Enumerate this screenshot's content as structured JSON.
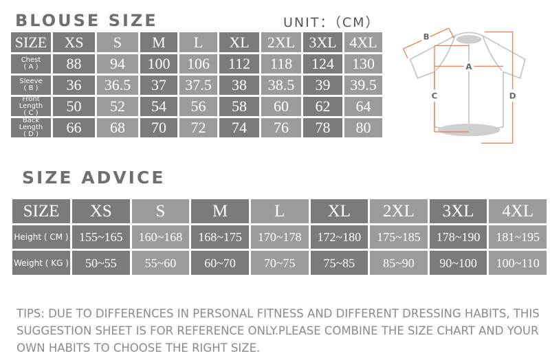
{
  "blouse": {
    "title": "BLOUSE SIZE",
    "unit": "UNIT：（CM）",
    "header": [
      "SIZE",
      "XS",
      "S",
      "M",
      "L",
      "XL",
      "2XL",
      "3XL",
      "4XL"
    ],
    "rows": [
      {
        "label": "Chest",
        "sub": "( A )",
        "values": [
          "88",
          "94",
          "100",
          "106",
          "112",
          "118",
          "124",
          "130"
        ]
      },
      {
        "label": "Sleeve",
        "sub": "( B )",
        "values": [
          "36",
          "36.5",
          "37",
          "37.5",
          "38",
          "38.5",
          "39",
          "39.5"
        ]
      },
      {
        "label": "Front Length",
        "sub": "( C )",
        "values": [
          "50",
          "52",
          "54",
          "56",
          "58",
          "60",
          "62",
          "64"
        ]
      },
      {
        "label": "Back Length",
        "sub": "( D )",
        "values": [
          "66",
          "68",
          "70",
          "72",
          "74",
          "76",
          "78",
          "80"
        ]
      }
    ]
  },
  "diagram": {
    "labels": [
      "A",
      "B",
      "C",
      "D"
    ],
    "accent": "#e8825c"
  },
  "advice": {
    "title": "SIZE ADVICE",
    "header": [
      "SIZE",
      "XS",
      "S",
      "M",
      "L",
      "XL",
      "2XL",
      "3XL",
      "4XL"
    ],
    "rows": [
      {
        "label": "Height ( CM )",
        "values": [
          "155~165",
          "160~168",
          "168~175",
          "170~178",
          "172~180",
          "175~185",
          "178~190",
          "181~195"
        ]
      },
      {
        "label": "Weight ( KG )",
        "values": [
          "50~55",
          "55~60",
          "60~70",
          "70~75",
          "75~85",
          "85~90",
          "90~100",
          "100~110"
        ]
      }
    ]
  },
  "tips": "TIPS: DUE TO DIFFERENCES IN PERSONAL FITNESS AND DIFFERENT DRESSING HABITS, THIS SUGGESTION SHEET IS FOR REFERENCE ONLY.PLEASE COMBINE THE SIZE CHART AND YOUR OWN HABITS TO CHOOSE THE RIGHT SIZE.",
  "colors": {
    "dark": "#7b7b7b",
    "light": "#9b9b9b",
    "title": "#6f6f6f"
  }
}
